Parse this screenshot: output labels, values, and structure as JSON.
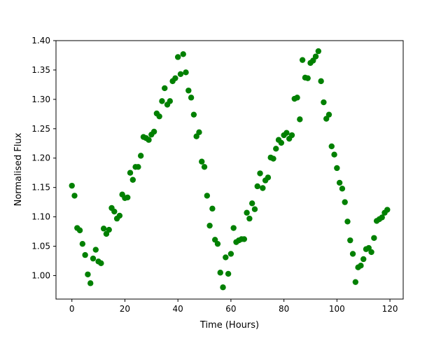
{
  "chart_data": {
    "type": "scatter",
    "title": "",
    "xlabel": "Time (Hours)",
    "ylabel": "Normalised Flux",
    "xlim": [
      -6,
      125
    ],
    "ylim": [
      0.96,
      1.4
    ],
    "xticks": [
      0,
      20,
      40,
      60,
      80,
      100,
      120
    ],
    "xtick_labels": [
      "0",
      "20",
      "40",
      "60",
      "80",
      "100",
      "120"
    ],
    "yticks": [
      1.0,
      1.05,
      1.1,
      1.15,
      1.2,
      1.25,
      1.3,
      1.35,
      1.4
    ],
    "ytick_labels": [
      "1.00",
      "1.05",
      "1.10",
      "1.15",
      "1.20",
      "1.25",
      "1.30",
      "1.35",
      "1.40"
    ],
    "grid": false,
    "legend": "none",
    "marker_color": "#008000",
    "series": [
      {
        "x": [
          0,
          1,
          2,
          3,
          4,
          5,
          6,
          7,
          8,
          9,
          10,
          11,
          12,
          13,
          14,
          15,
          16,
          17,
          18,
          19,
          20,
          21,
          22,
          23,
          24,
          25,
          26,
          27,
          28,
          29,
          30,
          31,
          32,
          33,
          34,
          35,
          36,
          37,
          38,
          39,
          40,
          41,
          42,
          43,
          44,
          45,
          46,
          47,
          48,
          49,
          50,
          51,
          52,
          53,
          54,
          55,
          56,
          57,
          58,
          59,
          60,
          61,
          62,
          63,
          64,
          65,
          66,
          67,
          68,
          69,
          70,
          71,
          72,
          73,
          74,
          75,
          76,
          77,
          78,
          79,
          80,
          81,
          82,
          83,
          84,
          85,
          86,
          87,
          88,
          89,
          90,
          91,
          92,
          93,
          94,
          95,
          96,
          97,
          98,
          99,
          100,
          101,
          102,
          103,
          104,
          105,
          106,
          107,
          108,
          109,
          110,
          111,
          112,
          113,
          114,
          115,
          116,
          117,
          118,
          119
        ],
        "y": [
          1.153,
          1.136,
          1.081,
          1.077,
          1.054,
          1.035,
          1.002,
          0.987,
          1.029,
          1.044,
          1.024,
          1.021,
          1.08,
          1.071,
          1.078,
          1.115,
          1.109,
          1.097,
          1.102,
          1.138,
          1.132,
          1.133,
          1.175,
          1.163,
          1.185,
          1.185,
          1.204,
          1.236,
          1.234,
          1.231,
          1.24,
          1.245,
          1.276,
          1.271,
          1.297,
          1.319,
          1.291,
          1.297,
          1.331,
          1.336,
          1.372,
          1.343,
          1.377,
          1.346,
          1.315,
          1.303,
          1.274,
          1.237,
          1.244,
          1.194,
          1.185,
          1.136,
          1.085,
          1.114,
          1.061,
          1.054,
          1.005,
          0.98,
          1.031,
          1.003,
          1.037,
          1.081,
          1.057,
          1.06,
          1.062,
          1.062,
          1.107,
          1.097,
          1.123,
          1.113,
          1.152,
          1.174,
          1.149,
          1.162,
          1.167,
          1.201,
          1.199,
          1.216,
          1.231,
          1.226,
          1.239,
          1.243,
          1.233,
          1.239,
          1.301,
          1.303,
          1.266,
          1.367,
          1.337,
          1.336,
          1.362,
          1.366,
          1.373,
          1.382,
          1.331,
          1.295,
          1.267,
          1.274,
          1.22,
          1.206,
          1.183,
          1.158,
          1.148,
          1.125,
          1.092,
          1.06,
          1.037,
          0.989,
          1.014,
          1.017,
          1.028,
          1.045,
          1.047,
          1.04,
          1.064,
          1.093,
          1.096,
          1.099,
          1.107,
          1.112
        ]
      }
    ]
  }
}
